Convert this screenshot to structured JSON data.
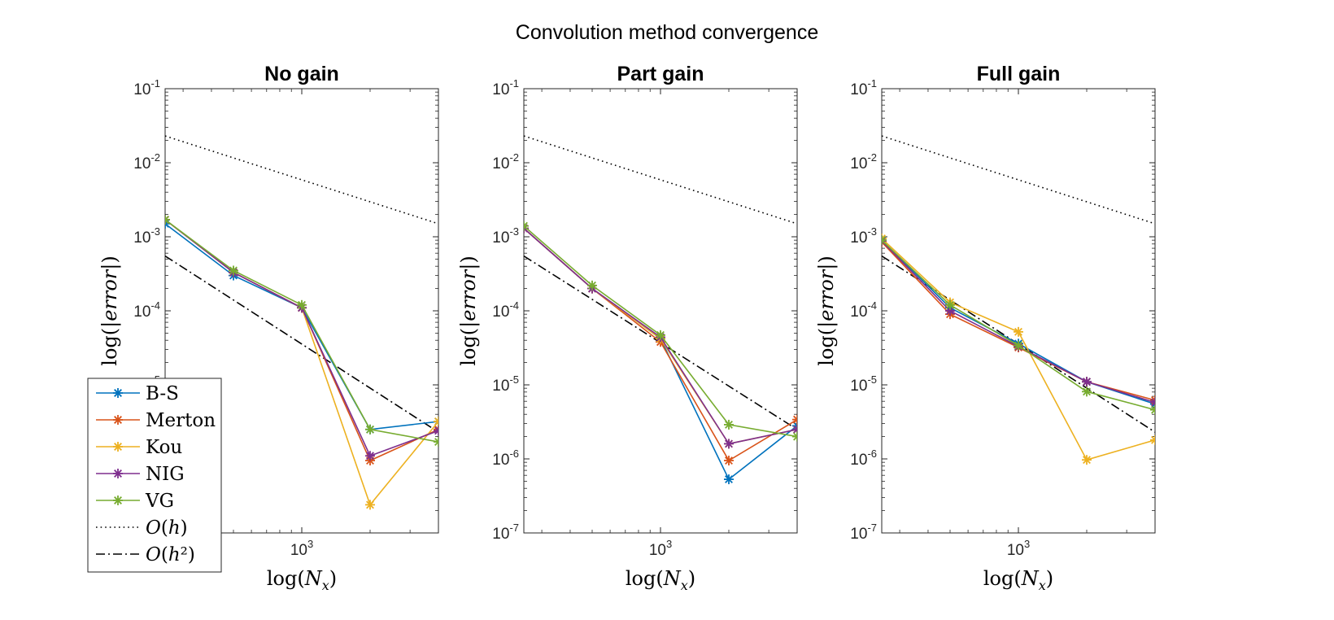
{
  "figure": {
    "title": "Convolution method convergence"
  },
  "axes": {
    "ylabel": {
      "pre": "log(|",
      "var": "error",
      "post": "|)"
    },
    "xlabel": {
      "pre": "log(",
      "var": "N",
      "sub": "x",
      "post": ")"
    },
    "ytick_base": "10",
    "xtick_base": "10"
  },
  "legend": {
    "placement": "lower-left",
    "entries": [
      {
        "label": "B-S",
        "kind": "marker-line",
        "color": "#0072BD"
      },
      {
        "label": "Merton",
        "kind": "marker-line",
        "color": "#D95319"
      },
      {
        "label": "Kou",
        "kind": "marker-line",
        "color": "#EDB120"
      },
      {
        "label": "NIG",
        "kind": "marker-line",
        "color": "#7E2F8E"
      },
      {
        "label": "VG",
        "kind": "marker-line",
        "color": "#77AC30"
      },
      {
        "label": "O(h)",
        "kind": "dotted",
        "color": "#000000"
      },
      {
        "label": "O(h²)",
        "kind": "dashdot",
        "color": "#000000"
      }
    ]
  },
  "chart_data": [
    {
      "type": "line",
      "title": "No gain",
      "xscale": "log",
      "yscale": "log",
      "xlim": [
        250,
        4000
      ],
      "ylim": [
        1e-07,
        0.1
      ],
      "xticks": [
        {
          "exp": "3"
        }
      ],
      "yticks": [
        {
          "exp": "-1"
        },
        {
          "exp": "-2"
        },
        {
          "exp": "-3"
        },
        {
          "exp": "-4"
        },
        {
          "exp": "-5"
        },
        {
          "exp": "-6"
        },
        {
          "exp": "-7"
        }
      ],
      "grid": false,
      "x": [
        250,
        500,
        1000,
        2000,
        4000
      ],
      "series": [
        {
          "name": "B-S",
          "color": "#0072BD",
          "values": [
            0.0015,
            0.0003,
            0.00011,
            2.5e-06,
            3.2e-06
          ]
        },
        {
          "name": "Merton",
          "color": "#D95319",
          "values": [
            0.0017,
            0.00033,
            0.00011,
            9.5e-07,
            2.5e-06
          ]
        },
        {
          "name": "Kou",
          "color": "#EDB120",
          "values": [
            0.0017,
            0.00033,
            0.00011,
            2.4e-07,
            3.2e-06
          ]
        },
        {
          "name": "NIG",
          "color": "#7E2F8E",
          "values": [
            0.0017,
            0.00033,
            0.00011,
            1.1e-06,
            2.4e-06
          ]
        },
        {
          "name": "VG",
          "color": "#77AC30",
          "values": [
            0.0017,
            0.00035,
            0.00012,
            2.5e-06,
            1.7e-06
          ]
        }
      ],
      "references": [
        {
          "name": "O(h)",
          "style": "dotted",
          "x": [
            250,
            4000
          ],
          "values": [
            0.023,
            0.0015
          ]
        },
        {
          "name": "O(h²)",
          "style": "dashdot",
          "x": [
            250,
            4000
          ],
          "values": [
            0.00055,
            2.3e-06
          ]
        }
      ]
    },
    {
      "type": "line",
      "title": "Part gain",
      "xscale": "log",
      "yscale": "log",
      "xlim": [
        250,
        4000
      ],
      "ylim": [
        1e-07,
        0.1
      ],
      "xticks": [
        {
          "exp": "3"
        }
      ],
      "yticks": [
        {
          "exp": "-1"
        },
        {
          "exp": "-2"
        },
        {
          "exp": "-3"
        },
        {
          "exp": "-4"
        },
        {
          "exp": "-5"
        },
        {
          "exp": "-6"
        },
        {
          "exp": "-7"
        }
      ],
      "grid": false,
      "x": [
        250,
        500,
        1000,
        2000,
        4000
      ],
      "series": [
        {
          "name": "B-S",
          "color": "#0072BD",
          "values": [
            0.0013,
            0.0002,
            4.2e-05,
            5.3e-07,
            2.8e-06
          ]
        },
        {
          "name": "Merton",
          "color": "#D95319",
          "values": [
            0.0013,
            0.0002,
            3.8e-05,
            9.5e-07,
            3.4e-06
          ]
        },
        {
          "name": "Kou",
          "color": "#EDB120",
          "values": [
            0.0013,
            0.0002,
            4.2e-05,
            1.6e-06,
            2.5e-06
          ]
        },
        {
          "name": "NIG",
          "color": "#7E2F8E",
          "values": [
            0.0013,
            0.0002,
            4.4e-05,
            1.6e-06,
            2.5e-06
          ]
        },
        {
          "name": "VG",
          "color": "#77AC30",
          "values": [
            0.0014,
            0.00022,
            4.7e-05,
            2.9e-06,
            2e-06
          ]
        }
      ],
      "references": [
        {
          "name": "O(h)",
          "style": "dotted",
          "x": [
            250,
            4000
          ],
          "values": [
            0.023,
            0.0015
          ]
        },
        {
          "name": "O(h²)",
          "style": "dashdot",
          "x": [
            250,
            4000
          ],
          "values": [
            0.00055,
            2.5e-06
          ]
        }
      ]
    },
    {
      "type": "line",
      "title": "Full gain",
      "xscale": "log",
      "yscale": "log",
      "xlim": [
        250,
        4000
      ],
      "ylim": [
        1e-07,
        0.1
      ],
      "xticks": [
        {
          "exp": "3"
        }
      ],
      "yticks": [
        {
          "exp": "-1"
        },
        {
          "exp": "-2"
        },
        {
          "exp": "-3"
        },
        {
          "exp": "-4"
        },
        {
          "exp": "-5"
        },
        {
          "exp": "-6"
        },
        {
          "exp": "-7"
        }
      ],
      "grid": false,
      "x": [
        250,
        500,
        1000,
        2000,
        4000
      ],
      "series": [
        {
          "name": "B-S",
          "color": "#0072BD",
          "values": [
            0.0009,
            0.00011,
            3.6e-05,
            1.1e-05,
            5.5e-06
          ]
        },
        {
          "name": "Merton",
          "color": "#D95319",
          "values": [
            0.00085,
            9e-05,
            3.2e-05,
            1.1e-05,
            6.2e-06
          ]
        },
        {
          "name": "Kou",
          "color": "#EDB120",
          "values": [
            0.00095,
            0.00013,
            5.2e-05,
            9.7e-07,
            1.8e-06
          ]
        },
        {
          "name": "NIG",
          "color": "#7E2F8E",
          "values": [
            0.00088,
            0.0001,
            3.3e-05,
            1.1e-05,
            5.8e-06
          ]
        },
        {
          "name": "VG",
          "color": "#77AC30",
          "values": [
            0.0009,
            0.00012,
            3.4e-05,
            8.1e-06,
            4.6e-06
          ]
        }
      ],
      "references": [
        {
          "name": "O(h)",
          "style": "dotted",
          "x": [
            250,
            4000
          ],
          "values": [
            0.023,
            0.0015
          ]
        },
        {
          "name": "O(h²)",
          "style": "dashdot",
          "x": [
            250,
            4000
          ],
          "values": [
            0.00055,
            2.3e-06
          ]
        }
      ]
    }
  ]
}
